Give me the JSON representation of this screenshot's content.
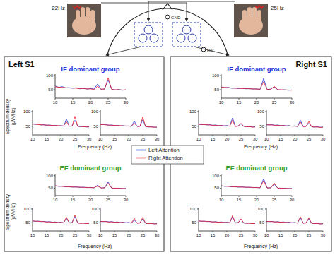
{
  "figure": {
    "stimuli": [
      "22Hz",
      "25Hz"
    ],
    "electrodes": {
      "gnd": "GND",
      "ref": "Ref."
    },
    "panels": [
      {
        "title": "Left S1",
        "groups": [
          "IF dominant group",
          "EF dominant group"
        ]
      },
      {
        "title": "Right S1",
        "groups": [
          "IF dominant group",
          "EF dominant group"
        ]
      }
    ],
    "x_label": "Frequency (Hz)",
    "y_label": [
      "Spectrum density",
      "(μV²/Hz)"
    ]
  },
  "chart_data": [
    {
      "type": "line",
      "x": [
        10,
        11,
        12,
        13,
        14,
        15,
        16,
        17,
        18,
        19,
        20,
        21,
        22,
        23,
        24,
        25,
        26,
        27,
        28,
        29,
        30
      ],
      "xlim": [
        10,
        30
      ],
      "xticks": [
        10,
        15,
        20,
        25,
        30
      ],
      "ylim": [
        20,
        105
      ],
      "yticks": [
        50,
        100
      ],
      "grid": false,
      "series": [
        {
          "name": "Left Attention",
          "color": "#2233dd",
          "values": [
            63,
            58,
            61,
            56,
            57,
            55,
            57,
            53,
            55,
            52,
            54,
            52,
            70,
            51,
            53,
            85,
            52,
            49,
            51,
            48,
            50
          ]
        },
        {
          "name": "Right Attention",
          "color": "#e8202a",
          "values": [
            60,
            59,
            58,
            57,
            56,
            56,
            55,
            54,
            54,
            53,
            53,
            51,
            62,
            52,
            52,
            92,
            51,
            50,
            50,
            49,
            49
          ]
        }
      ]
    },
    {
      "type": "line",
      "x": [
        10,
        11,
        12,
        13,
        14,
        15,
        16,
        17,
        18,
        19,
        20,
        21,
        22,
        23,
        24,
        25,
        26,
        27,
        28,
        29,
        30
      ],
      "xlim": [
        10,
        30
      ],
      "xticks": [
        10,
        15,
        20,
        25,
        30
      ],
      "ylim": [
        20,
        105
      ],
      "yticks": [
        50,
        100
      ],
      "grid": false,
      "series": [
        {
          "name": "Left Attention",
          "color": "#2233dd",
          "values": [
            58,
            56,
            57,
            54,
            55,
            53,
            54,
            52,
            53,
            51,
            52,
            50,
            74,
            50,
            51,
            70,
            50,
            48,
            49,
            47,
            48
          ]
        },
        {
          "name": "Right Attention",
          "color": "#e8202a",
          "values": [
            57,
            57,
            55,
            55,
            54,
            54,
            53,
            53,
            52,
            52,
            51,
            51,
            65,
            50,
            50,
            84,
            49,
            49,
            48,
            48,
            47
          ]
        }
      ]
    },
    {
      "type": "line",
      "x": [
        10,
        11,
        12,
        13,
        14,
        15,
        16,
        17,
        18,
        19,
        20,
        21,
        22,
        23,
        24,
        25,
        26,
        27,
        28,
        29,
        30
      ],
      "xlim": [
        10,
        30
      ],
      "xticks": [
        10,
        15,
        20,
        25,
        30
      ],
      "ylim": [
        20,
        105
      ],
      "yticks": [
        50,
        100
      ],
      "grid": false,
      "series": [
        {
          "name": "Left Attention",
          "color": "#2233dd",
          "values": [
            56,
            55,
            56,
            53,
            54,
            52,
            53,
            51,
            52,
            50,
            51,
            49,
            68,
            49,
            50,
            72,
            49,
            47,
            48,
            46,
            47
          ]
        },
        {
          "name": "Right Attention",
          "color": "#e8202a",
          "values": [
            55,
            56,
            54,
            54,
            53,
            53,
            52,
            52,
            51,
            51,
            50,
            50,
            60,
            49,
            49,
            82,
            48,
            48,
            47,
            47,
            46
          ]
        }
      ]
    },
    {
      "type": "line",
      "x": [
        10,
        11,
        12,
        13,
        14,
        15,
        16,
        17,
        18,
        19,
        20,
        21,
        22,
        23,
        24,
        25,
        26,
        27,
        28,
        29,
        30
      ],
      "xlim": [
        10,
        30
      ],
      "xticks": [
        10,
        15,
        20,
        25,
        30
      ],
      "ylim": [
        20,
        105
      ],
      "yticks": [
        50,
        100
      ],
      "grid": false,
      "series": [
        {
          "name": "Left Attention",
          "color": "#2233dd",
          "values": [
            60,
            57,
            58,
            55,
            56,
            54,
            55,
            53,
            54,
            52,
            53,
            51,
            62,
            51,
            52,
            74,
            50,
            49,
            50,
            48,
            49
          ]
        },
        {
          "name": "Right Attention",
          "color": "#e8202a",
          "values": [
            59,
            58,
            57,
            56,
            55,
            55,
            54,
            54,
            53,
            53,
            52,
            52,
            58,
            51,
            51,
            70,
            50,
            50,
            49,
            49,
            48
          ]
        }
      ]
    },
    {
      "type": "line",
      "x": [
        10,
        11,
        12,
        13,
        14,
        15,
        16,
        17,
        18,
        19,
        20,
        21,
        22,
        23,
        24,
        25,
        26,
        27,
        28,
        29,
        30
      ],
      "xlim": [
        10,
        30
      ],
      "xticks": [
        10,
        15,
        20,
        25,
        30
      ],
      "ylim": [
        20,
        105
      ],
      "yticks": [
        50,
        100
      ],
      "grid": false,
      "series": [
        {
          "name": "Left Attention",
          "color": "#2233dd",
          "values": [
            57,
            55,
            56,
            54,
            55,
            53,
            54,
            52,
            53,
            51,
            52,
            50,
            66,
            50,
            51,
            72,
            49,
            48,
            49,
            47,
            48
          ]
        },
        {
          "name": "Right Attention",
          "color": "#e8202a",
          "values": [
            56,
            56,
            55,
            55,
            54,
            53,
            53,
            52,
            52,
            51,
            51,
            50,
            70,
            49,
            50,
            78,
            49,
            48,
            48,
            47,
            47
          ]
        }
      ]
    },
    {
      "type": "line",
      "x": [
        10,
        11,
        12,
        13,
        14,
        15,
        16,
        17,
        18,
        19,
        20,
        21,
        22,
        23,
        24,
        25,
        26,
        27,
        28,
        29,
        30
      ],
      "xlim": [
        10,
        30
      ],
      "xticks": [
        10,
        15,
        20,
        25,
        30
      ],
      "ylim": [
        20,
        105
      ],
      "yticks": [
        50,
        100
      ],
      "grid": false,
      "series": [
        {
          "name": "Left Attention",
          "color": "#2233dd",
          "values": [
            55,
            54,
            55,
            53,
            54,
            52,
            53,
            51,
            52,
            50,
            51,
            49,
            60,
            49,
            50,
            64,
            48,
            47,
            48,
            46,
            47
          ]
        },
        {
          "name": "Right Attention",
          "color": "#e8202a",
          "values": [
            54,
            55,
            54,
            53,
            53,
            52,
            52,
            51,
            51,
            50,
            50,
            49,
            66,
            48,
            49,
            70,
            48,
            47,
            47,
            46,
            46
          ]
        }
      ]
    },
    {
      "type": "line",
      "x": [
        10,
        11,
        12,
        13,
        14,
        15,
        16,
        17,
        18,
        19,
        20,
        21,
        22,
        23,
        24,
        25,
        26,
        27,
        28,
        29,
        30
      ],
      "xlim": [
        10,
        30
      ],
      "xticks": [
        10,
        15,
        20,
        25,
        30
      ],
      "ylim": [
        20,
        105
      ],
      "yticks": [
        50,
        100
      ],
      "grid": false,
      "series": [
        {
          "name": "Left Attention",
          "color": "#2233dd",
          "values": [
            60,
            57,
            58,
            55,
            56,
            54,
            55,
            53,
            54,
            52,
            53,
            51,
            90,
            51,
            52,
            60,
            50,
            49,
            50,
            48,
            49
          ]
        },
        {
          "name": "Right Attention",
          "color": "#e8202a",
          "values": [
            59,
            58,
            57,
            56,
            55,
            55,
            54,
            54,
            53,
            53,
            52,
            52,
            78,
            51,
            51,
            62,
            50,
            50,
            49,
            49,
            48
          ]
        }
      ]
    },
    {
      "type": "line",
      "x": [
        10,
        11,
        12,
        13,
        14,
        15,
        16,
        17,
        18,
        19,
        20,
        21,
        22,
        23,
        24,
        25,
        26,
        27,
        28,
        29,
        30
      ],
      "xlim": [
        10,
        30
      ],
      "xticks": [
        10,
        15,
        20,
        25,
        30
      ],
      "ylim": [
        20,
        105
      ],
      "yticks": [
        50,
        100
      ],
      "grid": false,
      "series": [
        {
          "name": "Left Attention",
          "color": "#2233dd",
          "values": [
            57,
            55,
            56,
            54,
            55,
            53,
            54,
            52,
            53,
            51,
            52,
            50,
            78,
            50,
            51,
            58,
            49,
            48,
            49,
            47,
            48
          ]
        },
        {
          "name": "Right Attention",
          "color": "#e8202a",
          "values": [
            56,
            56,
            55,
            55,
            54,
            53,
            53,
            52,
            52,
            51,
            51,
            50,
            70,
            49,
            50,
            60,
            49,
            48,
            48,
            47,
            47
          ]
        }
      ]
    },
    {
      "type": "line",
      "x": [
        10,
        11,
        12,
        13,
        14,
        15,
        16,
        17,
        18,
        19,
        20,
        21,
        22,
        23,
        24,
        25,
        26,
        27,
        28,
        29,
        30
      ],
      "xlim": [
        10,
        30
      ],
      "xticks": [
        10,
        15,
        20,
        25,
        30
      ],
      "ylim": [
        20,
        105
      ],
      "yticks": [
        50,
        100
      ],
      "grid": false,
      "series": [
        {
          "name": "Left Attention",
          "color": "#2233dd",
          "values": [
            55,
            54,
            55,
            53,
            54,
            52,
            53,
            51,
            52,
            50,
            51,
            49,
            70,
            49,
            50,
            60,
            48,
            47,
            48,
            46,
            47
          ]
        },
        {
          "name": "Right Attention",
          "color": "#e8202a",
          "values": [
            54,
            55,
            54,
            53,
            53,
            52,
            52,
            51,
            51,
            50,
            50,
            49,
            64,
            48,
            49,
            66,
            48,
            47,
            47,
            46,
            46
          ]
        }
      ]
    },
    {
      "type": "line",
      "x": [
        10,
        11,
        12,
        13,
        14,
        15,
        16,
        17,
        18,
        19,
        20,
        21,
        22,
        23,
        24,
        25,
        26,
        27,
        28,
        29,
        30
      ],
      "xlim": [
        10,
        30
      ],
      "xticks": [
        10,
        15,
        20,
        25,
        30
      ],
      "ylim": [
        20,
        105
      ],
      "yticks": [
        50,
        100
      ],
      "grid": false,
      "series": [
        {
          "name": "Left Attention",
          "color": "#2233dd",
          "values": [
            60,
            57,
            58,
            55,
            56,
            54,
            55,
            53,
            54,
            52,
            53,
            51,
            88,
            51,
            52,
            66,
            50,
            49,
            50,
            48,
            49
          ]
        },
        {
          "name": "Right Attention",
          "color": "#e8202a",
          "values": [
            59,
            58,
            57,
            56,
            55,
            55,
            54,
            54,
            53,
            53,
            52,
            52,
            80,
            51,
            51,
            70,
            50,
            50,
            49,
            49,
            48
          ]
        }
      ]
    },
    {
      "type": "line",
      "x": [
        10,
        11,
        12,
        13,
        14,
        15,
        16,
        17,
        18,
        19,
        20,
        21,
        22,
        23,
        24,
        25,
        26,
        27,
        28,
        29,
        30
      ],
      "xlim": [
        10,
        30
      ],
      "xticks": [
        10,
        15,
        20,
        25,
        30
      ],
      "ylim": [
        20,
        105
      ],
      "yticks": [
        50,
        100
      ],
      "grid": false,
      "series": [
        {
          "name": "Left Attention",
          "color": "#2233dd",
          "values": [
            57,
            55,
            56,
            54,
            55,
            53,
            54,
            52,
            53,
            51,
            52,
            50,
            72,
            50,
            51,
            62,
            49,
            48,
            49,
            47,
            48
          ]
        },
        {
          "name": "Right Attention",
          "color": "#e8202a",
          "values": [
            56,
            56,
            55,
            55,
            54,
            53,
            53,
            52,
            52,
            51,
            51,
            50,
            76,
            49,
            50,
            64,
            49,
            48,
            48,
            47,
            47
          ]
        }
      ]
    },
    {
      "type": "line",
      "x": [
        10,
        11,
        12,
        13,
        14,
        15,
        16,
        17,
        18,
        19,
        20,
        21,
        22,
        23,
        24,
        25,
        26,
        27,
        28,
        29,
        30
      ],
      "xlim": [
        10,
        30
      ],
      "xticks": [
        10,
        15,
        20,
        25,
        30
      ],
      "ylim": [
        20,
        105
      ],
      "yticks": [
        50,
        100
      ],
      "grid": false,
      "series": [
        {
          "name": "Left Attention",
          "color": "#2233dd",
          "values": [
            55,
            54,
            55,
            53,
            54,
            52,
            53,
            51,
            52,
            50,
            51,
            49,
            68,
            49,
            50,
            64,
            48,
            47,
            48,
            46,
            47
          ]
        },
        {
          "name": "Right Attention",
          "color": "#e8202a",
          "values": [
            54,
            55,
            54,
            53,
            53,
            52,
            52,
            51,
            51,
            50,
            50,
            49,
            72,
            48,
            49,
            68,
            48,
            47,
            47,
            46,
            46
          ]
        }
      ]
    }
  ]
}
